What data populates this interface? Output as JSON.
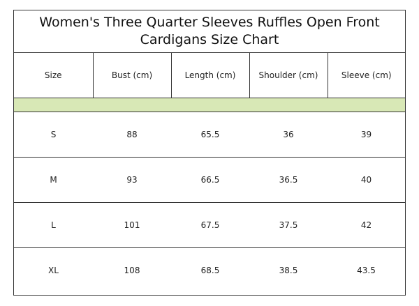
{
  "title": {
    "line1": "Women's Three Quarter Sleeves Ruffles Open Front",
    "line2": "Cardigans  Size Chart"
  },
  "columns": [
    "Size",
    "Bust (cm)",
    "Length (cm)",
    "Shoulder (cm)",
    "Sleeve (cm)"
  ],
  "rows": [
    [
      "S",
      "88",
      "65.5",
      "36",
      "39"
    ],
    [
      "M",
      "93",
      "66.5",
      "36.5",
      "40"
    ],
    [
      "L",
      "101",
      "67.5",
      "37.5",
      "42"
    ],
    [
      "XL",
      "108",
      "68.5",
      "38.5",
      "43.5"
    ]
  ],
  "colors": {
    "band": "#d8e8b6",
    "border": "#333333"
  }
}
